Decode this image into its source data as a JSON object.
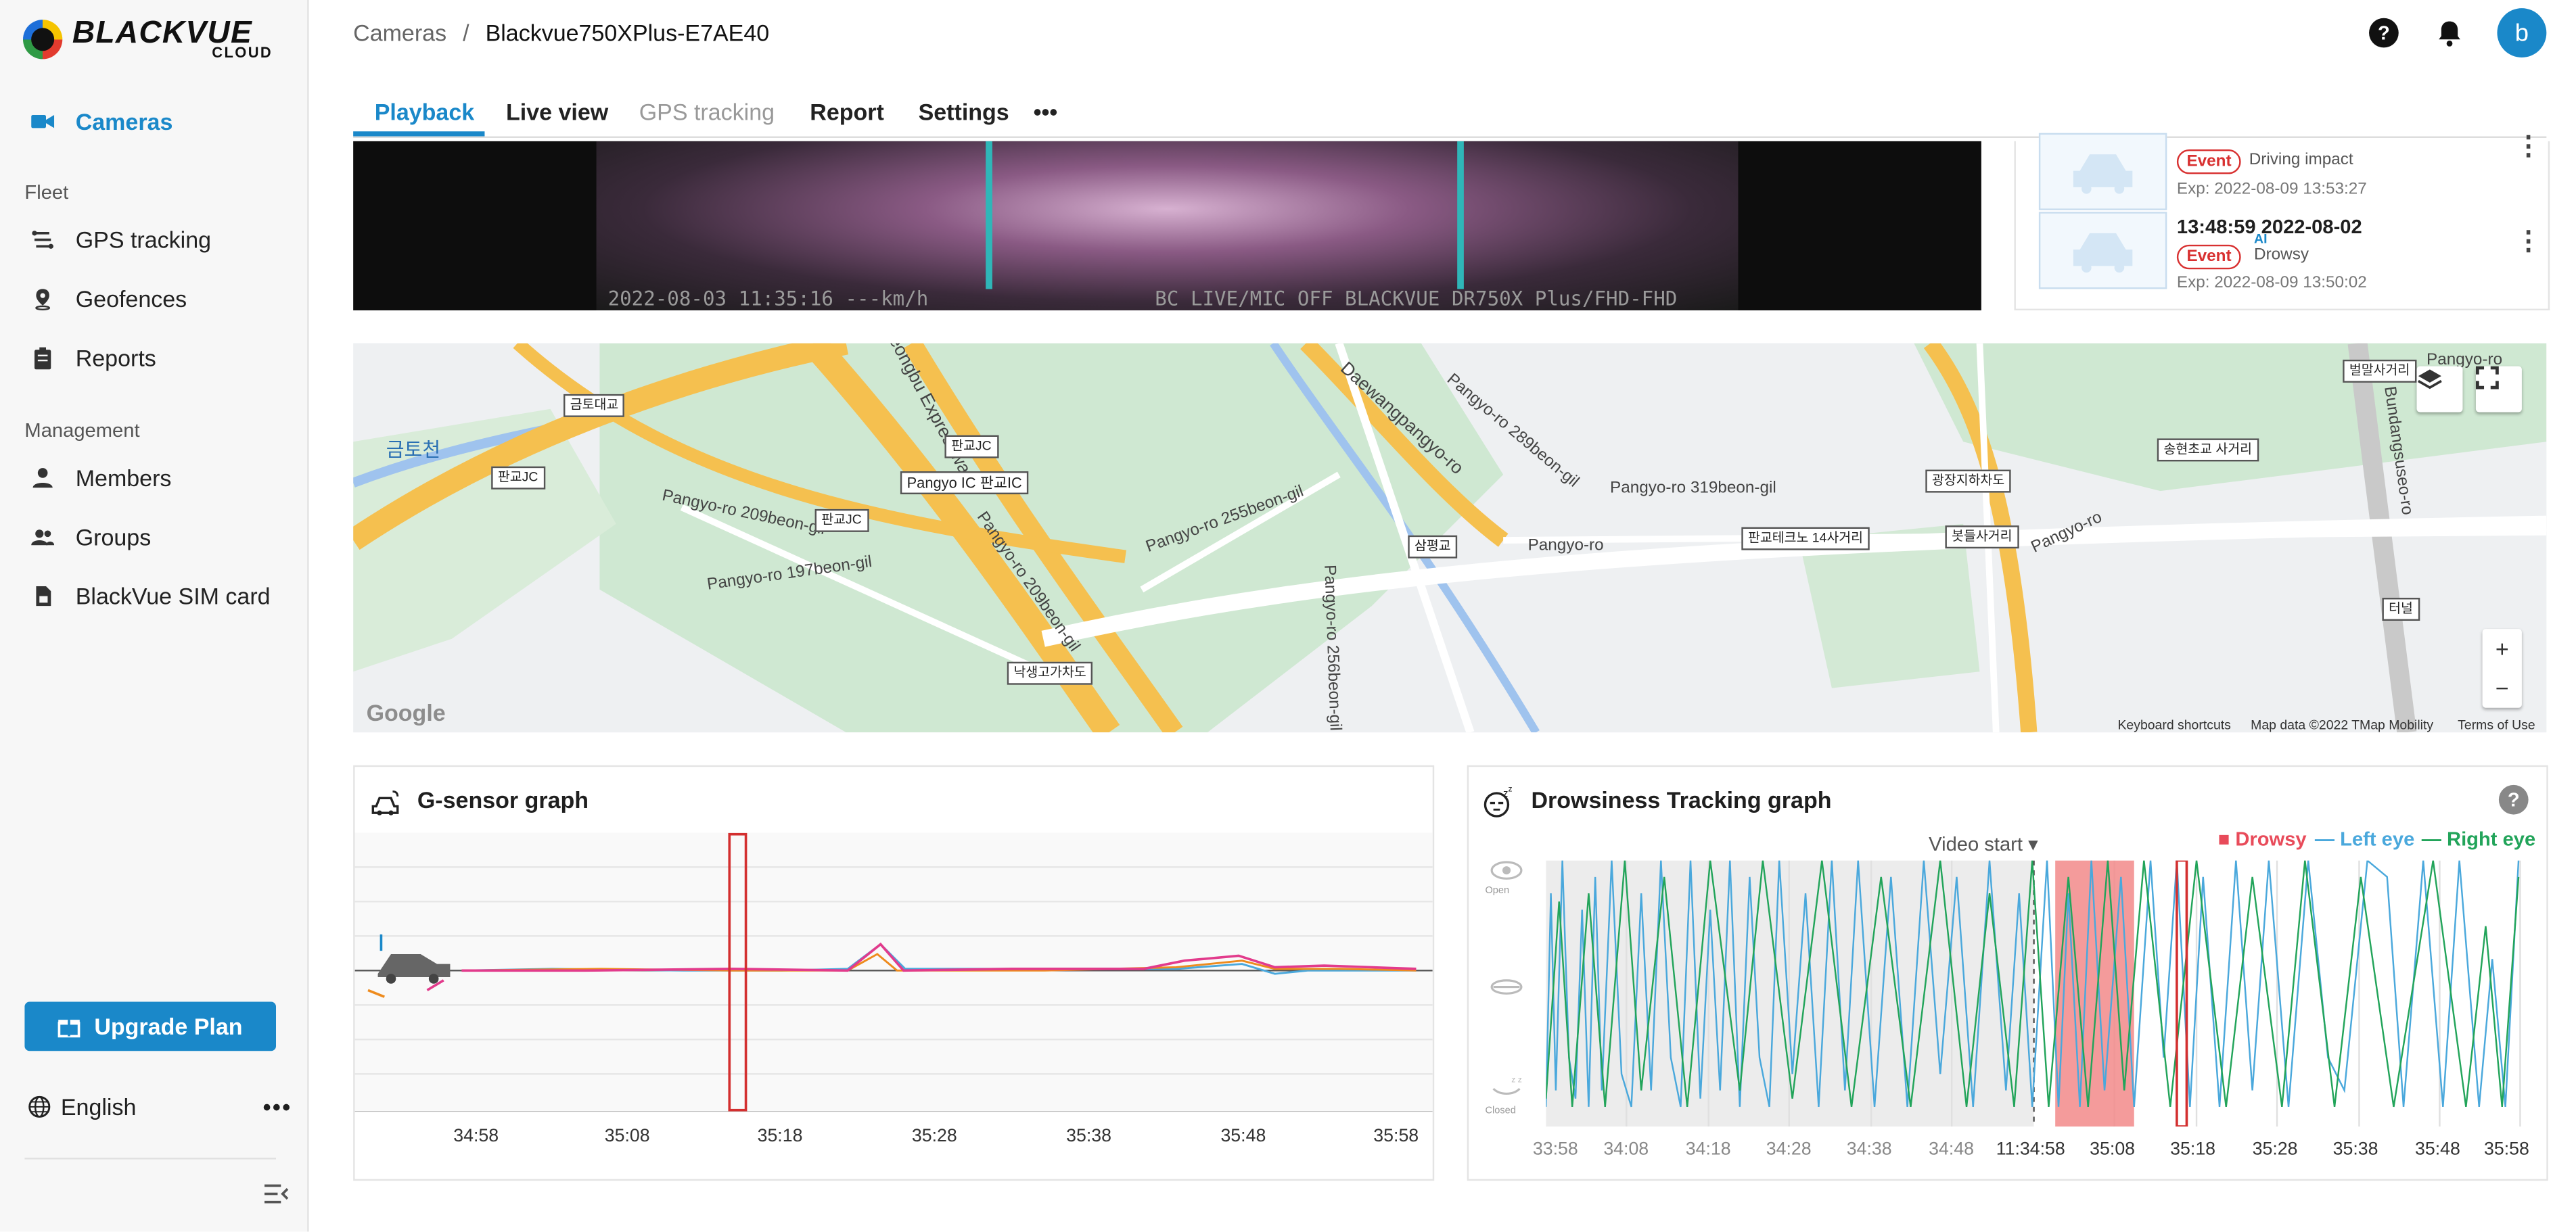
{
  "brand": {
    "name": "BLACKVUE",
    "sub": "CLOUD"
  },
  "sidebar": {
    "cameras": "Cameras",
    "fleet_title": "Fleet",
    "fleet": [
      "GPS tracking",
      "Geofences",
      "Reports"
    ],
    "management_title": "Management",
    "management": [
      "Members",
      "Groups",
      "BlackVue SIM card"
    ],
    "upgrade": "Upgrade Plan",
    "language": "English",
    "more": "•••"
  },
  "header": {
    "crumb_root": "Cameras",
    "crumb_sep": "/",
    "crumb_current": "Blackvue750XPlus-E7AE40",
    "help": "?",
    "avatar": "b"
  },
  "tabs": [
    "Playback",
    "Live view",
    "GPS tracking",
    "Report",
    "Settings",
    "•••"
  ],
  "video": {
    "osd_left": "2022-08-03 11:35:16 ---km/h",
    "osd_right": "BC LIVE/MIC OFF BLACKVUE DR750X Plus/FHD-FHD"
  },
  "events": [
    {
      "badge": "Event",
      "type": "Driving impact",
      "exp": "Exp: 2022-08-09 13:53:27"
    },
    {
      "time": "13:48:59 2022-08-02",
      "badge": "Event",
      "ai": "AI",
      "type": "Drowsy",
      "exp": "Exp: 2022-08-09 13:50:02"
    }
  ],
  "map": {
    "labels": [
      "Gyeongbu Expressway",
      "Daewangpangyo-ro",
      "Pangyo-ro 289beon-gil",
      "Pangyo-ro 319beon-gil",
      "Pangyo-ro",
      "Pangyo-ro",
      "Pangyo-ro 255beon-gil",
      "Pangyo-ro 209beon-gil",
      "Pangyo-ro 197beon-gil",
      "Pangyo-ro 209beon-gil",
      "Pangyo-ro 256beon-gil",
      "Bundangsuseo-ro",
      "Pangyo-ro",
      "금토천"
    ],
    "boxes": [
      "금토대교",
      "판교JC",
      "판교JC",
      "판교JC",
      "Pangyo IC 판교IC",
      "삼평교",
      "판교테크노 14사거리",
      "광장지하차도",
      "봇들사거리",
      "송현초교 사거리",
      "벌말사거리",
      "낙생고가차도",
      "터널"
    ],
    "google": "Google",
    "shortcuts": "Keyboard shortcuts",
    "mapdata": "Map data ©2022 TMap Mobility",
    "terms": "Terms of Use",
    "zoom_in": "+",
    "zoom_out": "−"
  },
  "gsensor": {
    "title": "G-sensor graph",
    "xticks": [
      "34:58",
      "35:08",
      "35:18",
      "35:28",
      "35:38",
      "35:48",
      "35:58"
    ]
  },
  "drowsiness": {
    "title": "Drowsiness Tracking graph",
    "video_start": "Video start",
    "legend": {
      "drowsy": "Drowsy",
      "left": "Left eye",
      "right": "Right eye"
    },
    "eye_labels": {
      "open": "Open",
      "closed": "Closed"
    },
    "xticks_before": [
      "33:58",
      "34:08",
      "34:18",
      "34:28",
      "34:38",
      "34:48"
    ],
    "xticks_after": [
      "11:34:58",
      "35:08",
      "35:18",
      "35:28",
      "35:38",
      "35:48",
      "35:58"
    ],
    "help": "?"
  },
  "colors": {
    "accent": "#1a88c9",
    "drowsy": "#e84b5a",
    "left_eye": "#4aa8dc",
    "right_eye": "#22a45a",
    "event_badge": "#d83030"
  }
}
